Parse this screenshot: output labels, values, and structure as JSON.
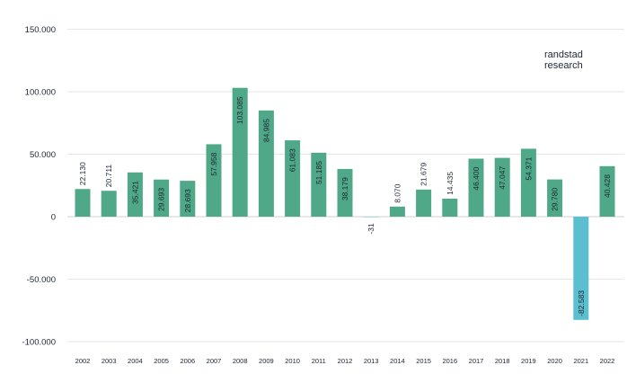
{
  "chart_data": {
    "type": "bar",
    "title": "",
    "xlabel": "",
    "ylabel": "",
    "ylim": [
      -100000,
      150000
    ],
    "yticks": [
      150000,
      100000,
      50000,
      0,
      -50000,
      -100000
    ],
    "ytick_labels": [
      "150.000",
      "100.000",
      "50.000",
      "0",
      "-50.000",
      "-100.000"
    ],
    "categories": [
      "2002",
      "2003",
      "2004",
      "2005",
      "2006",
      "2007",
      "2008",
      "2009",
      "2010",
      "2011",
      "2012",
      "2013",
      "2014",
      "2015",
      "2016",
      "2017",
      "2018",
      "2019",
      "2020",
      "2021",
      "2022"
    ],
    "values": [
      22130,
      20711,
      35421,
      29693,
      28693,
      57958,
      103085,
      84985,
      61083,
      51185,
      38179,
      -31,
      8070,
      21679,
      14435,
      46400,
      47047,
      54371,
      29780,
      -82583,
      40428
    ],
    "data_labels": [
      "22.130",
      "20.711",
      "35.421",
      "29.693",
      "28.693",
      "57.958",
      "103.085",
      "84.985",
      "61.083",
      "51.185",
      "38.179",
      "-31",
      "8.070",
      "21.679",
      "14.435",
      "46.400",
      "47.047",
      "54.371",
      "29.780",
      "-82.583",
      "40.428"
    ],
    "grid": true,
    "colors": {
      "positive": "#4fa887",
      "negative": "#5bbfcf",
      "grid": "#e6e6e6",
      "text": "#1d2433"
    }
  },
  "logo": {
    "line1": "randstad",
    "line2": "research"
  }
}
